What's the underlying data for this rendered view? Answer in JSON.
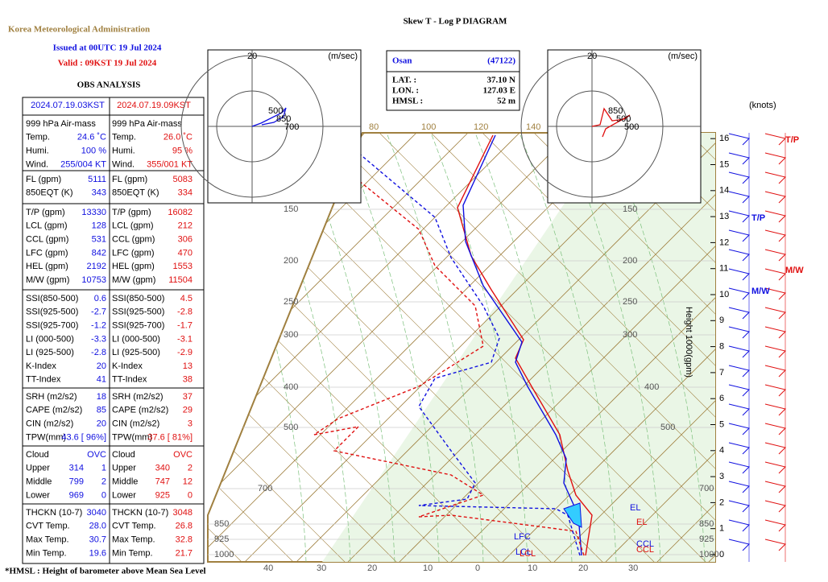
{
  "header": {
    "agency": "Korea Meteorological Administration",
    "title": "Skew T - Log P DIAGRAM",
    "issued": "Issued at 00UTC 19 Jul 2024",
    "valid": "Valid :  09KST 19 Jul 2024",
    "obs": "OBS  ANALYSIS"
  },
  "table": {
    "columns": [
      "2024.07.19.03KST",
      "2024.07.19.09KST"
    ],
    "sections": [
      [
        [
          [
            "999  hPa Air-mass"
          ],
          [
            "999  hPa Air-mass"
          ]
        ],
        [
          [
            "Temp.",
            "24.6  ˚C"
          ],
          [
            "Temp.",
            "26.0  ˚C"
          ]
        ],
        [
          [
            "Humi.",
            "100  %"
          ],
          [
            "Humi.",
            "95  %"
          ]
        ],
        [
          [
            "Wind.",
            "255/004 KT"
          ],
          [
            "Wind.",
            "355/001 KT"
          ]
        ]
      ],
      [
        [
          [
            "FL (gpm)",
            "5111"
          ],
          [
            "FL (gpm)",
            "5083"
          ]
        ],
        [
          [
            "850EQT (K)",
            "343"
          ],
          [
            "850EQT (K)",
            "334"
          ]
        ]
      ],
      [
        [
          [
            "T/P (gpm)",
            "13330"
          ],
          [
            "T/P (gpm)",
            "16082"
          ]
        ],
        [
          [
            "LCL (gpm)",
            "128"
          ],
          [
            "LCL (gpm)",
            "212"
          ]
        ],
        [
          [
            "CCL (gpm)",
            "531"
          ],
          [
            "CCL (gpm)",
            "306"
          ]
        ],
        [
          [
            "LFC (gpm)",
            "842"
          ],
          [
            "LFC (gpm)",
            "470"
          ]
        ],
        [
          [
            "HEL (gpm)",
            "2192"
          ],
          [
            "HEL (gpm)",
            "1553"
          ]
        ],
        [
          [
            "M/W (gpm)",
            "10753"
          ],
          [
            "M/W (gpm)",
            "11504"
          ]
        ]
      ],
      [
        [
          [
            "SSI(850-500)",
            "0.6"
          ],
          [
            "SSI(850-500)",
            "4.5"
          ]
        ],
        [
          [
            "SSI(925-500)",
            "-2.7"
          ],
          [
            "SSI(925-500)",
            "-2.8"
          ]
        ],
        [
          [
            "SSI(925-700)",
            "-1.2"
          ],
          [
            "SSI(925-700)",
            "-1.7"
          ]
        ],
        [
          [
            "LI (000-500)",
            "-3.3"
          ],
          [
            "LI (000-500)",
            "-3.1"
          ]
        ],
        [
          [
            "LI (925-500)",
            "-2.8"
          ],
          [
            "LI (925-500)",
            "-2.9"
          ]
        ],
        [
          [
            "K-Index",
            "20"
          ],
          [
            "K-Index",
            "13"
          ]
        ],
        [
          [
            "TT-Index",
            "41"
          ],
          [
            "TT-Index",
            "38"
          ]
        ]
      ],
      [
        [
          [
            "SRH (m2/s2)",
            "18"
          ],
          [
            "SRH (m2/s2)",
            "37"
          ]
        ],
        [
          [
            "CAPE (m2/s2)",
            "85"
          ],
          [
            "CAPE (m2/s2)",
            "29"
          ]
        ],
        [
          [
            "CIN (m2/s2)",
            "20"
          ],
          [
            "CIN (m2/s2)",
            "3"
          ]
        ],
        [
          [
            "TPW(mm)",
            "43.6 [ 96%]"
          ],
          [
            "TPW(mm)",
            "37.6 [ 81%]"
          ]
        ]
      ],
      [
        [
          [
            "Cloud",
            "OVC"
          ],
          [
            "Cloud",
            "OVC"
          ]
        ],
        [
          [
            "Upper",
            "314",
            "1"
          ],
          [
            "Upper",
            "340",
            "2"
          ]
        ],
        [
          [
            "Middle",
            "799",
            "2"
          ],
          [
            "Middle",
            "747",
            "12"
          ]
        ],
        [
          [
            "Lower",
            "969",
            "0"
          ],
          [
            "Lower",
            "925",
            "0"
          ]
        ]
      ],
      [
        [
          [
            "THCKN (10-7)",
            "3040"
          ],
          [
            "THCKN (10-7)",
            "3048"
          ]
        ],
        [
          [
            "CVT Temp.",
            "28.0"
          ],
          [
            "CVT Temp.",
            "26.8"
          ]
        ],
        [
          [
            "Max Temp.",
            "30.7"
          ],
          [
            "Max Temp.",
            "32.8"
          ]
        ],
        [
          [
            "Min Temp.",
            "19.6"
          ],
          [
            "Min Temp.",
            "21.7"
          ]
        ]
      ]
    ]
  },
  "station": {
    "name": "Osan",
    "id": "(47122)",
    "rows": [
      [
        "LAT.  :",
        "37.10 N"
      ],
      [
        "LON.  :",
        "127.03 E"
      ],
      [
        "HMSL  :",
        "52 m"
      ]
    ]
  },
  "hodographs": [
    {
      "max": "20",
      "unit": "(m/sec)",
      "labels": [
        "500",
        "850",
        "700"
      ]
    },
    {
      "max": "20",
      "unit": "(m/sec)",
      "labels": [
        "850",
        "500",
        "500"
      ]
    }
  ],
  "diagram": {
    "pressure_labels": [
      "150",
      "200",
      "250",
      "300",
      "400",
      "500",
      "700",
      "850",
      "925",
      "1000"
    ],
    "height_axis": "Height   1000(gpm)",
    "height_ticks": [
      0,
      1,
      2,
      3,
      4,
      5,
      6,
      7,
      8,
      9,
      10,
      11,
      12,
      13,
      14,
      15,
      16
    ],
    "temp_labels": [
      "40",
      "30",
      "20",
      "10",
      "0",
      "10",
      "20",
      "30"
    ],
    "theta_labels": [
      "80",
      "100",
      "120",
      "140"
    ],
    "knots": "(knots)",
    "markers": [
      "T/P",
      "M/W",
      "T/P",
      "M/W"
    ],
    "annotations": [
      "EL",
      "EL",
      "LFC",
      "CCL",
      "CCL",
      "LCL",
      "LCL"
    ]
  },
  "footnote": "*HMSL : Height of barometer above Mean Sea Level"
}
